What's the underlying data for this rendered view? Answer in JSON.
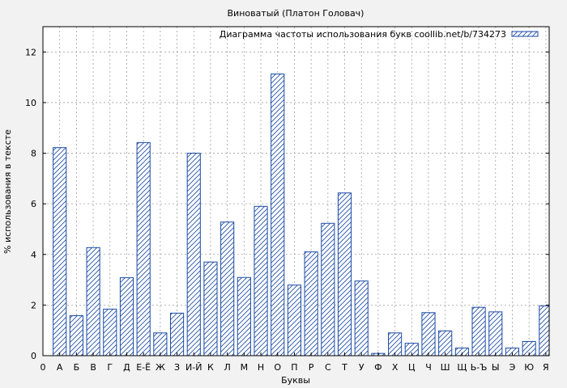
{
  "chart_data": {
    "type": "bar",
    "title": "Виноватый (Платон Головач)",
    "xlabel": "Буквы",
    "ylabel": "% использования в тексте",
    "legend": {
      "label": "Диаграмма частоты использования букв coollib.net/b/734273",
      "position": "top-right"
    },
    "ylim": [
      0,
      13
    ],
    "yticks": [
      0,
      2,
      4,
      6,
      8,
      10,
      12
    ],
    "x_origin_label": "0",
    "categories": [
      "А",
      "Б",
      "В",
      "Г",
      "Д",
      "Е-Ё",
      "Ж",
      "З",
      "И-Й",
      "К",
      "Л",
      "М",
      "Н",
      "О",
      "П",
      "Р",
      "С",
      "Т",
      "У",
      "Ф",
      "Х",
      "Ц",
      "Ч",
      "Ш",
      "Щ",
      "Ь-Ъ",
      "Ы",
      "Э",
      "Ю",
      "Я"
    ],
    "values": [
      8.22,
      1.58,
      4.27,
      1.84,
      3.08,
      8.42,
      0.9,
      1.68,
      8.0,
      3.7,
      5.28,
      3.09,
      5.9,
      11.13,
      2.79,
      4.1,
      5.23,
      6.43,
      2.95,
      0.09,
      0.9,
      0.49,
      1.7,
      0.98,
      0.3,
      1.91,
      1.73,
      0.3,
      0.56,
      1.97
    ],
    "grid": true,
    "colors": {
      "bar_stroke": "#1a4aa6",
      "hatch": "#1a4aa6",
      "bar_fill": "#ffffff",
      "grid": "#a0a0a0",
      "background": "#f2f2f2",
      "plot_background": "#ffffff"
    }
  }
}
